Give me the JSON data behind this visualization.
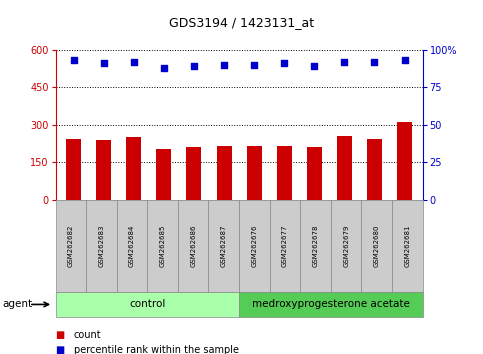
{
  "title": "GDS3194 / 1423131_at",
  "samples": [
    "GSM262682",
    "GSM262683",
    "GSM262684",
    "GSM262685",
    "GSM262686",
    "GSM262687",
    "GSM262676",
    "GSM262677",
    "GSM262678",
    "GSM262679",
    "GSM262680",
    "GSM262681"
  ],
  "counts": [
    245,
    240,
    250,
    205,
    210,
    215,
    215,
    215,
    210,
    255,
    242,
    310
  ],
  "percentile_ranks": [
    93,
    91,
    92,
    88,
    89,
    90,
    90,
    91,
    89,
    92,
    92,
    93
  ],
  "control_count": 6,
  "treatment_count": 6,
  "control_label": "control",
  "treatment_label": "medroxyprogesterone acetate",
  "agent_label": "agent",
  "ylim_left": [
    0,
    600
  ],
  "ylim_right": [
    0,
    100
  ],
  "yticks_left": [
    0,
    150,
    300,
    450,
    600
  ],
  "yticks_right": [
    0,
    25,
    50,
    75,
    100
  ],
  "bar_color": "#cc0000",
  "dot_color": "#0000cc",
  "control_bg": "#aaffaa",
  "treatment_bg": "#55cc55",
  "xticklabel_bg": "#cccccc",
  "legend_count_color": "#cc0000",
  "legend_pct_color": "#0000cc",
  "bar_width": 0.5
}
